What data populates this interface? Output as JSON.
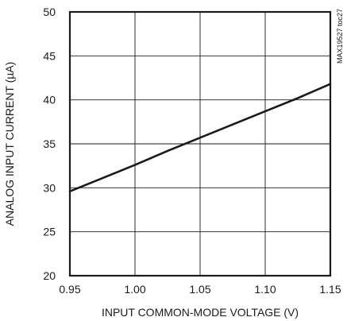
{
  "chart_data": {
    "type": "line",
    "title": "",
    "xlabel": "INPUT COMMON-MODE VOLTAGE (V)",
    "ylabel": "ANALOG INPUT CURRENT (µA)",
    "xlim": [
      0.95,
      1.15
    ],
    "ylim": [
      20,
      50
    ],
    "x_ticks": [
      0.95,
      1.0,
      1.05,
      1.1,
      1.15
    ],
    "x_tick_labels": [
      "0.95",
      "1.00",
      "1.05",
      "1.10",
      "1.15"
    ],
    "y_ticks": [
      20,
      25,
      30,
      35,
      40,
      45,
      50
    ],
    "y_tick_labels": [
      "20",
      "25",
      "30",
      "35",
      "40",
      "45",
      "50"
    ],
    "grid": true,
    "annotation": "MAX19527 toc27",
    "series": [
      {
        "x": [
          0.95,
          0.975,
          1.0,
          1.025,
          1.05,
          1.075,
          1.1,
          1.125,
          1.15
        ],
        "y": [
          29.6,
          31.1,
          32.6,
          34.2,
          35.7,
          37.2,
          38.7,
          40.2,
          41.8
        ]
      }
    ]
  }
}
